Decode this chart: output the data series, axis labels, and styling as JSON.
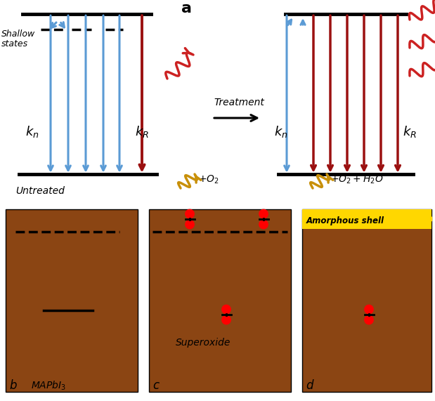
{
  "fig_width": 6.19,
  "fig_height": 5.71,
  "bg_color": "#ffffff",
  "blue": "#5b9bd5",
  "dark_red": "#9b1010",
  "red_wavy": "#cc2222",
  "gold": "#c8900a",
  "brown": "#8B4513",
  "yellow": "#FFD700",
  "black": "#000000",
  "panel_a_label": "a",
  "panel_b_label": "b",
  "panel_c_label": "c",
  "panel_d_label": "d",
  "treatment_text": "Treatment",
  "untreated_text": "Untreated",
  "shallow_text1": "Shallow",
  "shallow_text2": "states",
  "kn_text": "$k_n$",
  "kR_text": "$k_R$",
  "mapbi3_text": "$MAPbI_3$",
  "superoxide_text": "Superoxide",
  "amorphous_text": "Amorphous shell",
  "o2_text": "$+O_2$",
  "o2h2o_text": "$+O_2+H_2O$"
}
